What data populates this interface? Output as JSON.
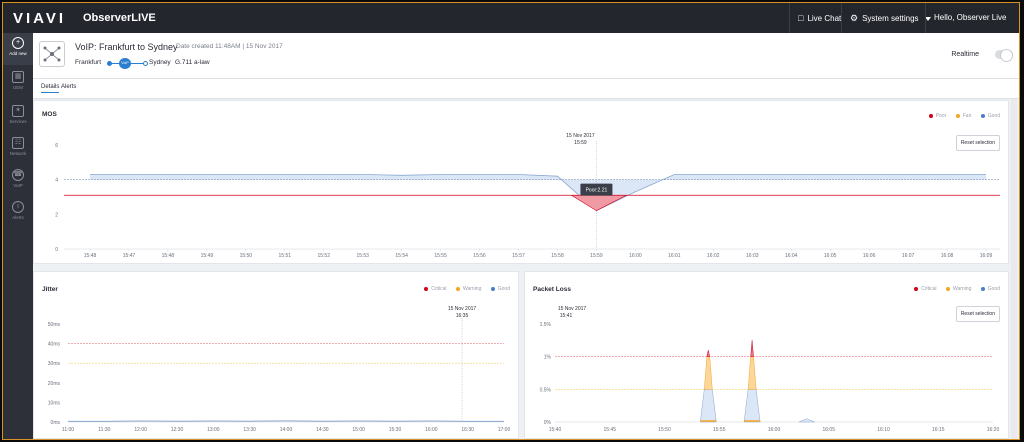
{
  "topbar": {
    "logo": "VIAVI",
    "app_name": "ObserverLIVE",
    "live_chat": "Live Chat",
    "system_settings": "System settings",
    "greeting": "Hello, Observer Live"
  },
  "sidebar": {
    "items": [
      {
        "label": "Add new",
        "icon": "plus-icon"
      },
      {
        "label": "UEM",
        "icon": "grid-icon"
      },
      {
        "label": "Services",
        "icon": "nodes-icon"
      },
      {
        "label": "Network",
        "icon": "network-icon"
      },
      {
        "label": "VoIP",
        "icon": "phone-icon"
      },
      {
        "label": "Alerts",
        "icon": "info-icon"
      }
    ]
  },
  "header": {
    "title": "VoIP: Frankfurt to Sydney",
    "date_created": "Date created 11:48AM | 15 Nov 2017",
    "route_from": "Frankfurt",
    "route_badge": "VoIP",
    "route_to": "Sydney",
    "codec": "G.711 a-law",
    "realtime_label": "Realtime"
  },
  "tabs": [
    "Details",
    "Alerts"
  ],
  "mos": {
    "title": "MOS",
    "legend": [
      "Poor",
      "Fair",
      "Good"
    ],
    "legend_colors": [
      "#d0021b",
      "#f5a623",
      "#4a7bd0"
    ],
    "reset": "Reset selection",
    "cursor_date": "15 Nov 2017",
    "cursor_time": "15:59",
    "tooltip": "Poor:2.21",
    "chart_data": {
      "type": "area",
      "yticks": [
        "0",
        "2",
        "4",
        "6"
      ],
      "ylim": [
        0,
        6
      ],
      "x": [
        "15:48",
        "15:47",
        "15:48",
        "15:49",
        "15:50",
        "15:51",
        "15:52",
        "15:53",
        "15:54",
        "15:55",
        "15:56",
        "15:57",
        "15:58",
        "15:59",
        "16:00",
        "16:01",
        "16:02",
        "16:03",
        "16:04",
        "16:05",
        "16:06",
        "16:07",
        "16:08",
        "16:09"
      ],
      "threshold_poor": 3.1,
      "threshold_good": 4.0,
      "values": [
        4.3,
        4.3,
        4.3,
        4.3,
        4.3,
        4.3,
        4.3,
        4.3,
        4.25,
        4.3,
        4.3,
        4.3,
        4.2,
        2.21,
        3.3,
        4.3,
        4.3,
        4.3,
        4.3,
        4.3,
        4.3,
        4.3,
        4.3,
        4.3
      ]
    }
  },
  "jitter": {
    "title": "Jitter",
    "legend": [
      "Critical",
      "Warning",
      "Good"
    ],
    "legend_colors": [
      "#d0021b",
      "#f5a623",
      "#4a7bd0"
    ],
    "cursor_date": "15 Nov 2017",
    "cursor_time": "16:35",
    "chart_data": {
      "type": "line",
      "yticks": [
        "0ms",
        "10ms",
        "20ms",
        "30ms",
        "40ms",
        "50ms"
      ],
      "ylim": [
        0,
        50
      ],
      "x": [
        "11:00",
        "11:30",
        "12:00",
        "12:30",
        "13:00",
        "13:30",
        "14:00",
        "14:30",
        "15:00",
        "15:30",
        "16:00",
        "16:30",
        "17:00"
      ],
      "critical": 40,
      "warning": 30,
      "values": [
        0.3,
        0.3,
        0.5,
        0.4,
        0.5,
        0.4,
        0.6,
        0.4,
        0.5,
        0.4,
        0.5,
        0.3,
        0.3
      ]
    }
  },
  "packet_loss": {
    "title": "Packet Loss",
    "legend": [
      "Critical",
      "Warning",
      "Good"
    ],
    "legend_colors": [
      "#d0021b",
      "#f5a623",
      "#4a7bd0"
    ],
    "reset": "Reset selection",
    "cursor_date": "15 Nov 2017",
    "cursor_time": "15:41",
    "chart_data": {
      "type": "area",
      "yticks": [
        "0%",
        "0.5%",
        "1%",
        "1.5%"
      ],
      "ylim": [
        0,
        1.5
      ],
      "x": [
        "15:40",
        "15:45",
        "15:50",
        "15:55",
        "16:00",
        "16:05",
        "16:10",
        "16:15",
        "16:20"
      ],
      "critical": 1.0,
      "warning": 0.5,
      "spikes": [
        {
          "time": "15:54",
          "value": 1.1
        },
        {
          "time": "15:58",
          "value": 1.25
        },
        {
          "time": "16:03",
          "value": 0.05
        }
      ]
    }
  }
}
